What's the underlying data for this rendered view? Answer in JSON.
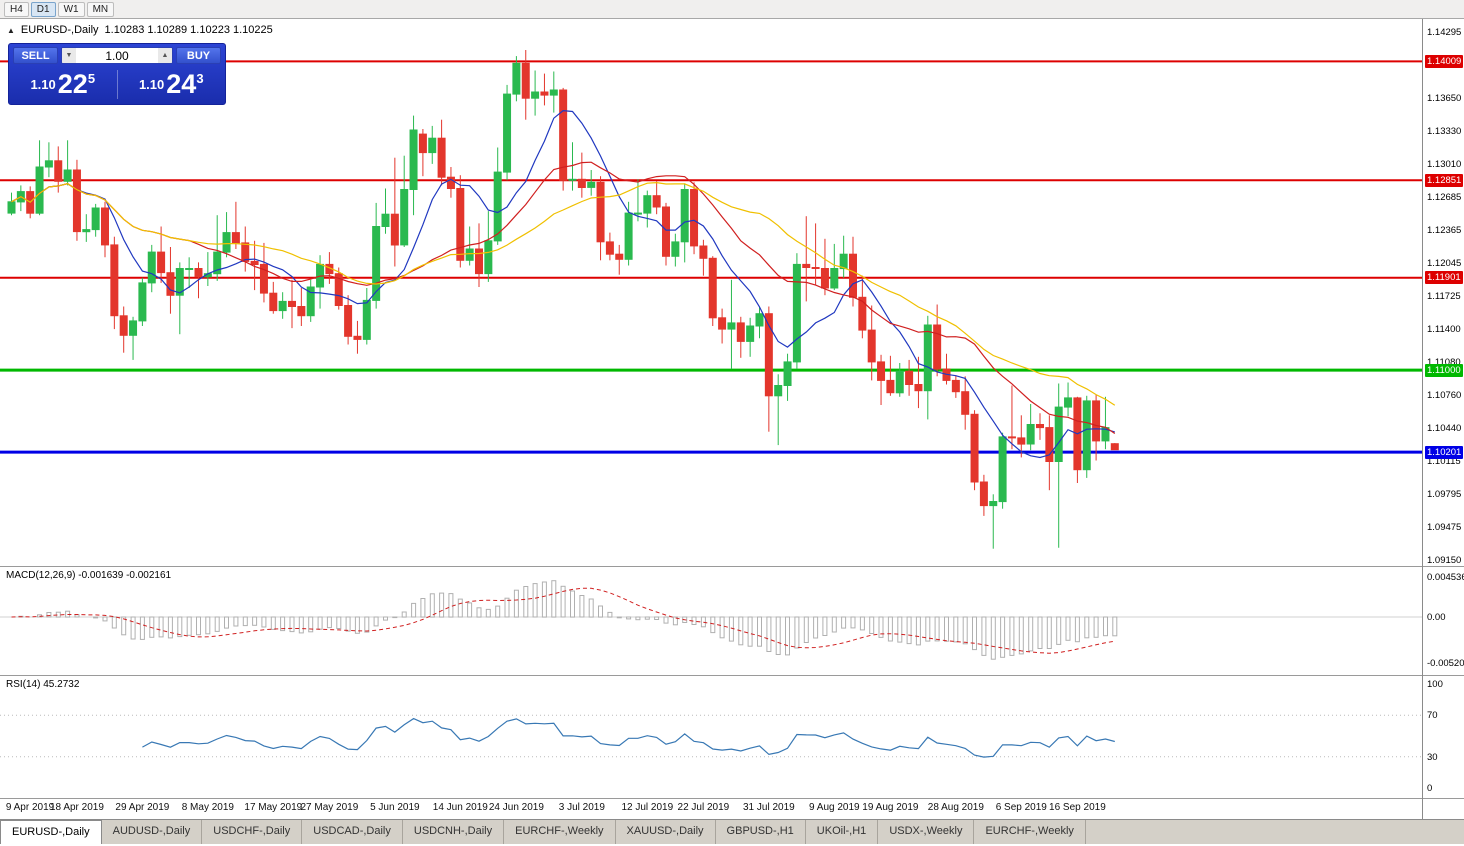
{
  "window": {
    "timeframes": [
      "H4",
      "D1",
      "W1",
      "MN"
    ],
    "active_timeframe": "D1"
  },
  "chart_header": {
    "collapse_icon": "▲",
    "symbol_title": "EURUSD-,Daily",
    "ohlc": "1.10283 1.10289 1.10223 1.10225"
  },
  "trade_panel": {
    "sell_label": "SELL",
    "buy_label": "BUY",
    "volume": "1.00",
    "volume_down_icon": "▼",
    "volume_up_icon": "▲",
    "sell_price": {
      "main": "1.10",
      "big": "22",
      "sup": "5"
    },
    "buy_price": {
      "main": "1.10",
      "big": "24",
      "sup": "3"
    }
  },
  "indicators": {
    "macd": {
      "label": "MACD(12,26,9) -0.001639 -0.002161",
      "params": [
        12,
        26,
        9
      ],
      "value": -0.001639,
      "signal_value": -0.002161,
      "axis": [
        {
          "label": "0.004536",
          "value": 0.004536
        },
        {
          "label": "0.00",
          "value": 0
        },
        {
          "label": "-0.005205",
          "value": -0.005205
        }
      ]
    },
    "rsi": {
      "label": "RSI(14) 45.2732",
      "period": 14,
      "value": 45.2732,
      "axis": [
        {
          "label": "100",
          "value": 100
        },
        {
          "label": "70",
          "value": 70
        },
        {
          "label": "30",
          "value": 30
        },
        {
          "label": "0",
          "value": 0
        }
      ],
      "levels": [
        70,
        30
      ]
    }
  },
  "price_axis": {
    "ticks": [
      1.14295,
      1.1365,
      1.1333,
      1.1301,
      1.12685,
      1.12365,
      1.12045,
      1.11725,
      1.114,
      1.1108,
      1.1076,
      1.1044,
      1.10115,
      1.09795,
      1.09475,
      1.0915
    ],
    "levels": [
      {
        "price": 1.14009,
        "color": "#dd0000"
      },
      {
        "price": 1.12851,
        "color": "#dd0000"
      },
      {
        "price": 1.11901,
        "color": "#dd0000"
      },
      {
        "price": 1.11,
        "color": "#00b800"
      },
      {
        "price": 1.10201,
        "color": "#0000e6"
      }
    ]
  },
  "x_axis": {
    "tick_indices": [
      0,
      7,
      14,
      21,
      28,
      34,
      41,
      48,
      54,
      61,
      68,
      74,
      81,
      88,
      94,
      101,
      108,
      114
    ],
    "tick_labels": [
      "9 Apr 2019",
      "18 Apr 2019",
      "29 Apr 2019",
      "8 May 2019",
      "17 May 2019",
      "27 May 2019",
      "5 Jun 2019",
      "14 Jun 2019",
      "24 Jun 2019",
      "3 Jul 2019",
      "12 Jul 2019",
      "22 Jul 2019",
      "31 Jul 2019",
      "9 Aug 2019",
      "19 Aug 2019",
      "28 Aug 2019",
      "6 Sep 2019",
      "16 Sep 2019"
    ]
  },
  "tabs": {
    "active_index": 0,
    "items": [
      "EURUSD-,Daily",
      "AUDUSD-,Daily",
      "USDCHF-,Daily",
      "USDCAD-,Daily",
      "USDCNH-,Daily",
      "EURCHF-,Weekly",
      "XAUUSD-,Daily",
      "GBPUSD-,H1",
      "UKOil-,H1",
      "USDX-,Weekly",
      "EURCHF-,Weekly"
    ]
  },
  "colors": {
    "bull": "#2ab94f",
    "bear": "#e3362c",
    "ma_fast": "#2038c0",
    "ma_mid": "#d02020",
    "ma_slow": "#f0c000",
    "macd_hist": "#b0b0b0",
    "macd_signal": "#d02020",
    "rsi_line": "#3878b4",
    "level_red": "#dd0000",
    "level_green": "#00b800",
    "level_blue": "#0000e6"
  },
  "chart_data": {
    "type": "candlestick",
    "title": "EURUSD-,Daily",
    "y_range": [
      1.0915,
      1.14295
    ],
    "x_tick_labels": [
      "9 Apr 2019",
      "18 Apr 2019",
      "29 Apr 2019",
      "8 May 2019",
      "17 May 2019",
      "27 May 2019",
      "5 Jun 2019",
      "14 Jun 2019",
      "24 Jun 2019",
      "3 Jul 2019",
      "12 Jul 2019",
      "22 Jul 2019",
      "31 Jul 2019",
      "9 Aug 2019",
      "19 Aug 2019",
      "28 Aug 2019",
      "6 Sep 2019",
      "16 Sep 2019"
    ],
    "hlines": [
      {
        "price": 1.14009,
        "color_key": "level_red",
        "width": 2
      },
      {
        "price": 1.12851,
        "color_key": "level_red",
        "width": 2
      },
      {
        "price": 1.11901,
        "color_key": "level_red",
        "width": 2
      },
      {
        "price": 1.11,
        "color_key": "level_green",
        "width": 3
      },
      {
        "price": 1.10201,
        "color_key": "level_blue",
        "width": 3
      }
    ],
    "moving_averages": [
      {
        "period": 8,
        "color_key": "ma_fast"
      },
      {
        "period": 20,
        "color_key": "ma_mid"
      },
      {
        "period": 30,
        "color_key": "ma_slow"
      }
    ],
    "candles": [
      [
        1.1253,
        1.1273,
        1.1251,
        1.1264
      ],
      [
        1.1264,
        1.128,
        1.1255,
        1.1274
      ],
      [
        1.1274,
        1.1279,
        1.1248,
        1.1253
      ],
      [
        1.1253,
        1.1324,
        1.1251,
        1.1298
      ],
      [
        1.1298,
        1.1322,
        1.1288,
        1.1304
      ],
      [
        1.1304,
        1.1318,
        1.1273,
        1.1284
      ],
      [
        1.1284,
        1.1324,
        1.128,
        1.1295
      ],
      [
        1.1295,
        1.1305,
        1.1226,
        1.1235
      ],
      [
        1.1235,
        1.1252,
        1.1225,
        1.1237
      ],
      [
        1.1237,
        1.1262,
        1.123,
        1.1258
      ],
      [
        1.1258,
        1.1264,
        1.121,
        1.1222
      ],
      [
        1.1222,
        1.123,
        1.114,
        1.1153
      ],
      [
        1.1153,
        1.1162,
        1.1117,
        1.1134
      ],
      [
        1.1134,
        1.1152,
        1.111,
        1.1148
      ],
      [
        1.1148,
        1.119,
        1.1143,
        1.1185
      ],
      [
        1.1185,
        1.1222,
        1.1176,
        1.1215
      ],
      [
        1.1215,
        1.124,
        1.1185,
        1.1195
      ],
      [
        1.1195,
        1.122,
        1.1155,
        1.1173
      ],
      [
        1.1173,
        1.1205,
        1.1135,
        1.1199
      ],
      [
        1.1199,
        1.121,
        1.118,
        1.1199
      ],
      [
        1.1199,
        1.1205,
        1.117,
        1.1191
      ],
      [
        1.1191,
        1.1215,
        1.1182,
        1.1194
      ],
      [
        1.1194,
        1.1251,
        1.1187,
        1.1215
      ],
      [
        1.1215,
        1.1254,
        1.121,
        1.1234
      ],
      [
        1.1234,
        1.1264,
        1.1218,
        1.1224
      ],
      [
        1.1224,
        1.124,
        1.1196,
        1.1206
      ],
      [
        1.1206,
        1.1226,
        1.1178,
        1.1203
      ],
      [
        1.1203,
        1.1224,
        1.1166,
        1.1175
      ],
      [
        1.1175,
        1.1186,
        1.1155,
        1.1158
      ],
      [
        1.1158,
        1.1176,
        1.115,
        1.1167
      ],
      [
        1.1167,
        1.1188,
        1.1141,
        1.1162
      ],
      [
        1.1162,
        1.118,
        1.1143,
        1.1153
      ],
      [
        1.1153,
        1.1188,
        1.1147,
        1.1181
      ],
      [
        1.1181,
        1.1212,
        1.116,
        1.1203
      ],
      [
        1.1203,
        1.1215,
        1.1184,
        1.1194
      ],
      [
        1.1194,
        1.12,
        1.1159,
        1.1163
      ],
      [
        1.1163,
        1.1173,
        1.1125,
        1.1133
      ],
      [
        1.1133,
        1.1148,
        1.1116,
        1.113
      ],
      [
        1.113,
        1.118,
        1.1125,
        1.1168
      ],
      [
        1.1168,
        1.1263,
        1.116,
        1.124
      ],
      [
        1.124,
        1.1277,
        1.1233,
        1.1252
      ],
      [
        1.1252,
        1.1307,
        1.1201,
        1.1222
      ],
      [
        1.1222,
        1.1309,
        1.122,
        1.1276
      ],
      [
        1.1276,
        1.1348,
        1.1251,
        1.1334
      ],
      [
        1.133,
        1.1335,
        1.1289,
        1.1312
      ],
      [
        1.1312,
        1.1338,
        1.1301,
        1.1326
      ],
      [
        1.1326,
        1.1344,
        1.128,
        1.1288
      ],
      [
        1.1288,
        1.1298,
        1.1268,
        1.1277
      ],
      [
        1.1277,
        1.129,
        1.12,
        1.1207
      ],
      [
        1.1207,
        1.124,
        1.1202,
        1.1218
      ],
      [
        1.1218,
        1.1243,
        1.1181,
        1.1194
      ],
      [
        1.1194,
        1.1255,
        1.1186,
        1.1226
      ],
      [
        1.1226,
        1.1317,
        1.1222,
        1.1293
      ],
      [
        1.1293,
        1.1378,
        1.1285,
        1.1369
      ],
      [
        1.1369,
        1.1406,
        1.1362,
        1.1399
      ],
      [
        1.1399,
        1.1412,
        1.1344,
        1.1365
      ],
      [
        1.1365,
        1.1392,
        1.1348,
        1.1371
      ],
      [
        1.1371,
        1.1389,
        1.1358,
        1.1368
      ],
      [
        1.1368,
        1.1391,
        1.1351,
        1.1373
      ],
      [
        1.1373,
        1.1375,
        1.1275,
        1.1285
      ],
      [
        1.1285,
        1.1322,
        1.1275,
        1.1286
      ],
      [
        1.1286,
        1.1312,
        1.1268,
        1.1278
      ],
      [
        1.1278,
        1.1295,
        1.127,
        1.1283
      ],
      [
        1.1283,
        1.1289,
        1.1207,
        1.1225
      ],
      [
        1.1225,
        1.1234,
        1.1207,
        1.1213
      ],
      [
        1.1213,
        1.1222,
        1.1193,
        1.1208
      ],
      [
        1.1208,
        1.1264,
        1.1202,
        1.1253
      ],
      [
        1.1253,
        1.1286,
        1.1245,
        1.1253
      ],
      [
        1.1253,
        1.1275,
        1.1239,
        1.127
      ],
      [
        1.127,
        1.1284,
        1.1252,
        1.1259
      ],
      [
        1.1259,
        1.1263,
        1.1202,
        1.1211
      ],
      [
        1.1211,
        1.1233,
        1.1201,
        1.1225
      ],
      [
        1.1225,
        1.1282,
        1.1205,
        1.1276
      ],
      [
        1.1276,
        1.1283,
        1.1213,
        1.1221
      ],
      [
        1.1221,
        1.1227,
        1.1192,
        1.1209
      ],
      [
        1.1209,
        1.1211,
        1.1143,
        1.1151
      ],
      [
        1.1151,
        1.116,
        1.1126,
        1.114
      ],
      [
        1.114,
        1.1188,
        1.1101,
        1.1146
      ],
      [
        1.1146,
        1.1152,
        1.1112,
        1.1128
      ],
      [
        1.1128,
        1.1151,
        1.1113,
        1.1143
      ],
      [
        1.1143,
        1.1162,
        1.1131,
        1.1155
      ],
      [
        1.1155,
        1.1162,
        1.104,
        1.1075
      ],
      [
        1.1075,
        1.1096,
        1.1027,
        1.1085
      ],
      [
        1.1085,
        1.1116,
        1.107,
        1.1108
      ],
      [
        1.1108,
        1.1214,
        1.1101,
        1.1203
      ],
      [
        1.1203,
        1.125,
        1.1167,
        1.12
      ],
      [
        1.12,
        1.1243,
        1.1183,
        1.1199
      ],
      [
        1.1199,
        1.1228,
        1.1173,
        1.118
      ],
      [
        1.118,
        1.1223,
        1.1178,
        1.1199
      ],
      [
        1.1199,
        1.1231,
        1.119,
        1.1213
      ],
      [
        1.1213,
        1.123,
        1.1162,
        1.1171
      ],
      [
        1.1171,
        1.1192,
        1.1131,
        1.1139
      ],
      [
        1.1139,
        1.1163,
        1.109,
        1.1108
      ],
      [
        1.1108,
        1.1115,
        1.1066,
        1.109
      ],
      [
        1.109,
        1.1114,
        1.1075,
        1.1078
      ],
      [
        1.1078,
        1.1107,
        1.1074,
        1.1099
      ],
      [
        1.1099,
        1.111,
        1.1075,
        1.1086
      ],
      [
        1.1086,
        1.1113,
        1.1063,
        1.108
      ],
      [
        1.108,
        1.1153,
        1.1052,
        1.1144
      ],
      [
        1.1144,
        1.1164,
        1.1094,
        1.1101
      ],
      [
        1.1101,
        1.1116,
        1.1086,
        1.109
      ],
      [
        1.109,
        1.1095,
        1.1073,
        1.1079
      ],
      [
        1.1079,
        1.1094,
        1.1042,
        1.1057
      ],
      [
        1.1057,
        1.1061,
        1.0983,
        1.0991
      ],
      [
        1.0991,
        1.0998,
        1.0958,
        1.0968
      ],
      [
        1.0968,
        1.0979,
        1.0926,
        1.0972
      ],
      [
        1.0972,
        1.1039,
        1.0965,
        1.1035
      ],
      [
        1.1035,
        1.1085,
        1.1023,
        1.1034
      ],
      [
        1.1034,
        1.1056,
        1.1015,
        1.1028
      ],
      [
        1.1028,
        1.1067,
        1.1022,
        1.1047
      ],
      [
        1.1047,
        1.1058,
        1.1032,
        1.1044
      ],
      [
        1.1044,
        1.1056,
        1.0983,
        1.1011
      ],
      [
        1.1011,
        1.1087,
        1.0927,
        1.1064
      ],
      [
        1.1064,
        1.1088,
        1.1055,
        1.1073
      ],
      [
        1.1073,
        1.1074,
        1.099,
        1.1003
      ],
      [
        1.1003,
        1.1075,
        1.0995,
        1.107
      ],
      [
        1.107,
        1.1076,
        1.1012,
        1.1031
      ],
      [
        1.1031,
        1.1074,
        1.1023,
        1.1044
      ],
      [
        1.10283,
        1.10289,
        1.10223,
        1.10225
      ]
    ]
  }
}
